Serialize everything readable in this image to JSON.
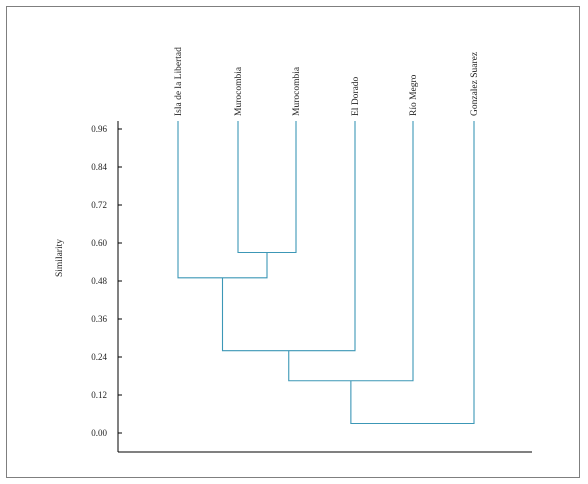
{
  "chart_data": {
    "type": "dendrogram",
    "orientation": "vertical",
    "ylabel": "Similarity",
    "yticks": [
      "0.96",
      "0.84",
      "0.72",
      "0.60",
      "0.48",
      "0.36",
      "0.24",
      "0.12",
      "0.00"
    ],
    "ylim": [
      0.0,
      0.96
    ],
    "leaves": [
      "Isla de la Libertad",
      "Murocombia",
      "Murocombia",
      "El Dorado",
      "Río Megro",
      "Gonzalez Suarez"
    ],
    "merges": [
      {
        "left": "leaf:1",
        "right": "leaf:2",
        "similarity": 0.57
      },
      {
        "left": "leaf:0",
        "right": "node:0",
        "similarity": 0.49
      },
      {
        "left": "node:1",
        "right": "leaf:3",
        "similarity": 0.26
      },
      {
        "left": "node:2",
        "right": "leaf:4",
        "similarity": 0.165
      },
      {
        "left": "node:3",
        "right": "leaf:5",
        "similarity": 0.03
      }
    ],
    "line_color": "#3c97b6",
    "axis_color": "#000000",
    "grid": false,
    "legend": "none"
  }
}
